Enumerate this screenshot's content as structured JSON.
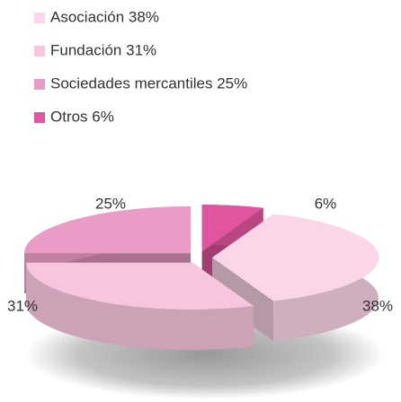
{
  "chart_data": {
    "type": "pie",
    "categories": [
      "Asociación 38%",
      "Fundación 31%",
      "Sociedades mercantiles 25%",
      "Otros 6%"
    ],
    "values": [
      38,
      31,
      25,
      6
    ],
    "value_labels": [
      "38%",
      "31%",
      "25%",
      "6%"
    ],
    "colors": [
      "#fad6e8",
      "#f7c6de",
      "#eb9cc6",
      "#e0559d"
    ],
    "legend": "top-left"
  }
}
